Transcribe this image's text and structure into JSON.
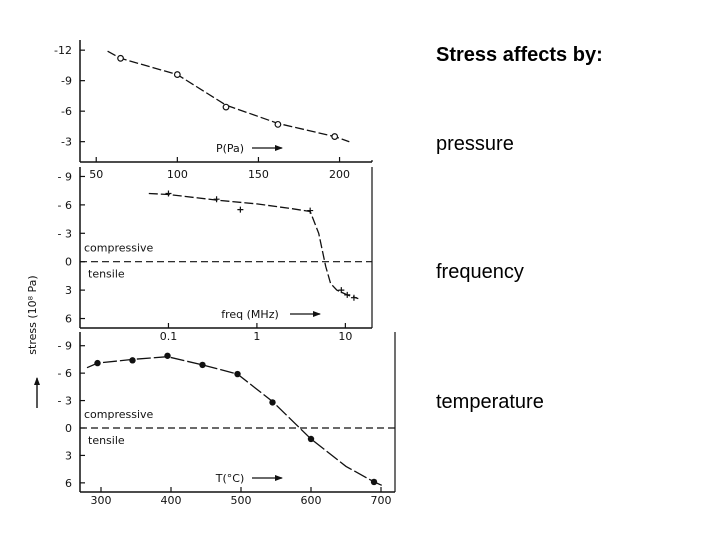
{
  "slide": {
    "heading": "Stress affects by:",
    "bullets": [
      "pressure",
      "frequency",
      "temperature"
    ]
  },
  "colors": {
    "ink": "#111111",
    "background": "#ffffff"
  },
  "chart_data": [
    {
      "type": "scatter",
      "title": "",
      "xlabel": "P(Pa)",
      "ylabel": "stress (10^8 Pa)",
      "x_scale": "linear",
      "xlim": [
        40,
        220
      ],
      "x_ticks": [
        50,
        100,
        150,
        200
      ],
      "x_tick_labels": [
        "50",
        "100",
        "150",
        "200"
      ],
      "ylim": [
        -1,
        -13
      ],
      "y_ticks": [
        -12,
        -9,
        -6,
        -3
      ],
      "y_tick_labels": [
        "-12",
        "-9",
        "-6",
        "-3"
      ],
      "marker": "open-circle",
      "points": [
        {
          "x": 65,
          "y": -11.2
        },
        {
          "x": 100,
          "y": -9.6
        },
        {
          "x": 130,
          "y": -6.4
        },
        {
          "x": 162,
          "y": -4.7
        },
        {
          "x": 197,
          "y": -3.5
        }
      ],
      "curve": [
        [
          57,
          -11.9
        ],
        [
          65,
          -11.2
        ],
        [
          100,
          -9.6
        ],
        [
          130,
          -6.6
        ],
        [
          162,
          -4.8
        ],
        [
          197,
          -3.5
        ],
        [
          206,
          -3.0
        ]
      ],
      "compressive_label": "",
      "tensile_label": ""
    },
    {
      "type": "scatter",
      "title": "",
      "xlabel": "freq (MHz)",
      "ylabel": "stress (10^8 Pa)",
      "x_scale": "log",
      "xlim": [
        0.01,
        20
      ],
      "x_ticks": [
        0.1,
        1,
        10
      ],
      "x_tick_labels": [
        "0.1",
        "1",
        "10"
      ],
      "ylim": [
        7,
        -10
      ],
      "y_ticks": [
        -9,
        -6,
        -3,
        0,
        3,
        6
      ],
      "y_tick_labels": [
        "- 9",
        "- 6",
        "- 3",
        "0",
        "3",
        "6"
      ],
      "marker": "plus",
      "points": [
        {
          "x": 0.1,
          "y": -7.2
        },
        {
          "x": 0.35,
          "y": -6.6
        },
        {
          "x": 0.65,
          "y": -5.5
        },
        {
          "x": 4.0,
          "y": -5.4
        },
        {
          "x": 9.0,
          "y": 3.0
        },
        {
          "x": 10.5,
          "y": 3.5
        },
        {
          "x": 12.5,
          "y": 3.8
        }
      ],
      "curve": [
        [
          0.06,
          -7.2
        ],
        [
          0.1,
          -7.1
        ],
        [
          0.35,
          -6.5
        ],
        [
          1.0,
          -6.1
        ],
        [
          2.5,
          -5.6
        ],
        [
          4.0,
          -5.3
        ],
        [
          5.0,
          -3.0
        ],
        [
          6.0,
          0.5
        ],
        [
          6.8,
          2.3
        ],
        [
          8.0,
          3.0
        ],
        [
          10.5,
          3.5
        ],
        [
          14,
          3.9
        ]
      ],
      "zero_line": true,
      "compressive_label": "compressive",
      "tensile_label": "tensile"
    },
    {
      "type": "scatter",
      "title": "",
      "xlabel": "T(°C)",
      "ylabel": "stress (10^8 Pa)",
      "x_scale": "linear",
      "xlim": [
        270,
        720
      ],
      "x_ticks": [
        300,
        400,
        500,
        600,
        700
      ],
      "x_tick_labels": [
        "300",
        "400",
        "500",
        "600",
        "700"
      ],
      "ylim": [
        7,
        -10.5
      ],
      "y_ticks": [
        -9,
        -6,
        -3,
        0,
        3,
        6
      ],
      "y_tick_labels": [
        "- 9",
        "- 6",
        "- 3",
        "0",
        "3",
        "6"
      ],
      "marker": "filled-circle",
      "points": [
        {
          "x": 295,
          "y": -7.1
        },
        {
          "x": 345,
          "y": -7.4
        },
        {
          "x": 395,
          "y": -7.9
        },
        {
          "x": 445,
          "y": -6.9
        },
        {
          "x": 495,
          "y": -5.9
        },
        {
          "x": 545,
          "y": -2.8
        },
        {
          "x": 600,
          "y": 1.2
        },
        {
          "x": 690,
          "y": 5.9
        }
      ],
      "curve": [
        [
          280,
          -6.6
        ],
        [
          295,
          -7.1
        ],
        [
          345,
          -7.5
        ],
        [
          395,
          -7.8
        ],
        [
          445,
          -6.9
        ],
        [
          495,
          -5.9
        ],
        [
          545,
          -2.9
        ],
        [
          600,
          1.2
        ],
        [
          650,
          4.2
        ],
        [
          690,
          5.9
        ],
        [
          705,
          6.4
        ]
      ],
      "zero_line": true,
      "compressive_label": "compressive",
      "tensile_label": "tensile"
    }
  ],
  "shared_y_label": "stress (10⁸ Pa)"
}
